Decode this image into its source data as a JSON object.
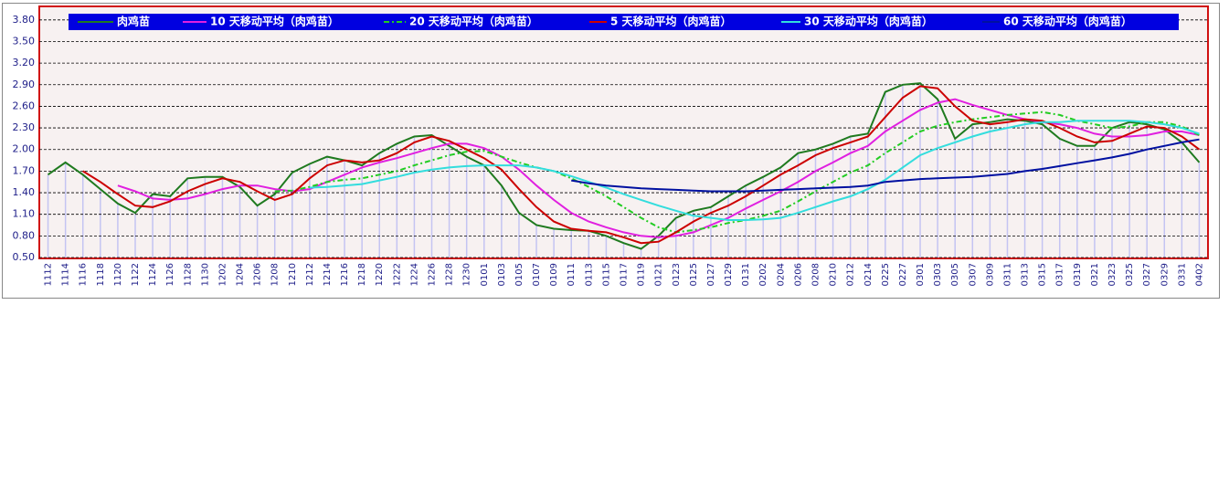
{
  "chart_data": {
    "type": "line",
    "categories": [
      "1112",
      "1114",
      "1116",
      "1118",
      "1120",
      "1122",
      "1124",
      "1126",
      "1128",
      "1130",
      "1202",
      "1204",
      "1206",
      "1208",
      "1210",
      "1212",
      "1214",
      "1216",
      "1218",
      "1220",
      "1222",
      "1224",
      "1226",
      "1228",
      "1230",
      "0101",
      "0103",
      "0105",
      "0107",
      "0109",
      "0111",
      "0113",
      "0115",
      "0117",
      "0119",
      "0121",
      "0123",
      "0125",
      "0127",
      "0129",
      "0131",
      "0202",
      "0204",
      "0206",
      "0208",
      "0210",
      "0212",
      "0214",
      "0225",
      "0227",
      "0301",
      "0303",
      "0305",
      "0307",
      "0309",
      "0311",
      "0313",
      "0315",
      "0317",
      "0319",
      "0321",
      "0323",
      "0325",
      "0327",
      "0329",
      "0331",
      "0402"
    ],
    "series": [
      {
        "name": "肉鸡苗",
        "color": "#1f7a1f",
        "bar_color": "#c4c4f2",
        "style": "solid",
        "values": [
          1.65,
          1.82,
          1.65,
          1.45,
          1.25,
          1.12,
          1.38,
          1.35,
          1.6,
          1.62,
          1.62,
          1.48,
          1.22,
          1.38,
          1.68,
          1.8,
          1.9,
          1.85,
          1.78,
          1.95,
          2.08,
          2.18,
          2.2,
          2.05,
          1.9,
          1.78,
          1.5,
          1.12,
          0.95,
          0.9,
          0.88,
          0.87,
          0.8,
          0.7,
          0.62,
          0.8,
          1.05,
          1.15,
          1.2,
          1.35,
          1.5,
          1.62,
          1.75,
          1.95,
          2.0,
          2.08,
          2.18,
          2.22,
          2.8,
          2.9,
          2.92,
          2.7,
          2.15,
          2.35,
          2.38,
          2.42,
          2.4,
          2.35,
          2.15,
          2.05,
          2.05,
          2.3,
          2.38,
          2.35,
          2.28,
          2.1,
          1.82
        ]
      },
      {
        "name": "10 天移动平均（肉鸡苗）",
        "color": "#e020e0",
        "style": "solid",
        "values": [
          null,
          null,
          null,
          null,
          1.5,
          1.42,
          1.32,
          1.3,
          1.32,
          1.38,
          1.45,
          1.5,
          1.5,
          1.45,
          1.42,
          1.45,
          1.55,
          1.65,
          1.75,
          1.82,
          1.88,
          1.95,
          2.02,
          2.08,
          2.08,
          2.02,
          1.9,
          1.72,
          1.5,
          1.3,
          1.12,
          1.0,
          0.92,
          0.85,
          0.8,
          0.78,
          0.8,
          0.85,
          0.95,
          1.05,
          1.18,
          1.3,
          1.42,
          1.55,
          1.7,
          1.82,
          1.95,
          2.05,
          2.25,
          2.4,
          2.55,
          2.65,
          2.7,
          2.62,
          2.55,
          2.48,
          2.42,
          2.38,
          2.35,
          2.3,
          2.22,
          2.18,
          2.18,
          2.2,
          2.25,
          2.25,
          2.2
        ]
      },
      {
        "name": "20 天移动平均（肉鸡苗）",
        "color": "#22cc22",
        "style": "dash-dot",
        "values": [
          null,
          null,
          null,
          null,
          null,
          null,
          null,
          null,
          null,
          null,
          null,
          null,
          null,
          1.42,
          1.43,
          1.48,
          1.55,
          1.58,
          1.6,
          1.65,
          1.7,
          1.78,
          1.85,
          1.92,
          1.97,
          1.98,
          1.9,
          1.82,
          1.75,
          1.7,
          1.6,
          1.48,
          1.35,
          1.2,
          1.05,
          0.92,
          0.85,
          0.88,
          0.92,
          0.98,
          1.02,
          1.08,
          1.15,
          1.28,
          1.42,
          1.55,
          1.68,
          1.78,
          1.95,
          2.1,
          2.25,
          2.33,
          2.38,
          2.42,
          2.45,
          2.48,
          2.5,
          2.52,
          2.48,
          2.4,
          2.35,
          2.3,
          2.32,
          2.38,
          2.38,
          2.32,
          2.2
        ]
      },
      {
        "name": "5 天移动平均（肉鸡苗）",
        "color": "#cc0000",
        "style": "solid",
        "values": [
          null,
          null,
          1.7,
          1.55,
          1.38,
          1.22,
          1.2,
          1.28,
          1.42,
          1.52,
          1.6,
          1.55,
          1.42,
          1.3,
          1.38,
          1.6,
          1.78,
          1.85,
          1.82,
          1.85,
          1.95,
          2.1,
          2.18,
          2.12,
          2.0,
          1.88,
          1.72,
          1.45,
          1.2,
          1.0,
          0.9,
          0.87,
          0.85,
          0.78,
          0.7,
          0.72,
          0.85,
          1.0,
          1.12,
          1.22,
          1.35,
          1.5,
          1.65,
          1.78,
          1.92,
          2.02,
          2.1,
          2.18,
          2.45,
          2.72,
          2.88,
          2.85,
          2.6,
          2.4,
          2.35,
          2.38,
          2.42,
          2.4,
          2.3,
          2.18,
          2.1,
          2.12,
          2.22,
          2.32,
          2.3,
          2.18,
          2.0
        ]
      },
      {
        "name": "30 天移动平均（肉鸡苗）",
        "color": "#33dddd",
        "style": "solid",
        "values": [
          null,
          null,
          null,
          null,
          null,
          null,
          null,
          null,
          null,
          null,
          null,
          null,
          null,
          null,
          null,
          1.47,
          1.48,
          1.5,
          1.52,
          1.57,
          1.62,
          1.68,
          1.72,
          1.75,
          1.77,
          1.78,
          1.78,
          1.78,
          1.75,
          1.7,
          1.63,
          1.55,
          1.47,
          1.38,
          1.3,
          1.22,
          1.15,
          1.08,
          1.05,
          1.02,
          1.02,
          1.03,
          1.05,
          1.12,
          1.2,
          1.28,
          1.35,
          1.45,
          1.58,
          1.75,
          1.92,
          2.02,
          2.1,
          2.18,
          2.25,
          2.3,
          2.35,
          2.38,
          2.38,
          2.4,
          2.4,
          2.4,
          2.4,
          2.38,
          2.35,
          2.3,
          2.22
        ]
      },
      {
        "name": "60 天移动平均（肉鸡苗）",
        "color": "#0010a0",
        "style": "solid",
        "values": [
          null,
          null,
          null,
          null,
          null,
          null,
          null,
          null,
          null,
          null,
          null,
          null,
          null,
          null,
          null,
          null,
          null,
          null,
          null,
          null,
          null,
          null,
          null,
          null,
          null,
          null,
          null,
          null,
          null,
          null,
          1.57,
          1.53,
          1.5,
          1.48,
          1.46,
          1.45,
          1.44,
          1.43,
          1.42,
          1.42,
          1.42,
          1.43,
          1.44,
          1.45,
          1.46,
          1.47,
          1.48,
          1.5,
          1.55,
          1.57,
          1.59,
          1.6,
          1.61,
          1.62,
          1.64,
          1.66,
          1.7,
          1.73,
          1.77,
          1.81,
          1.85,
          1.89,
          1.94,
          2.0,
          2.05,
          2.1,
          2.14
        ]
      }
    ],
    "ylim": [
      0.5,
      3.95
    ],
    "yticks": [
      {
        "value": 0.5,
        "label": "0.50"
      },
      {
        "value": 0.8,
        "label": "0.80"
      },
      {
        "value": 1.1,
        "label": "1.10"
      },
      {
        "value": 1.4,
        "label": "1.40"
      },
      {
        "value": 1.7,
        "label": "1.70"
      },
      {
        "value": 2.0,
        "label": "2.00"
      },
      {
        "value": 2.3,
        "label": "2.30"
      },
      {
        "value": 2.6,
        "label": "2.60"
      },
      {
        "value": 2.9,
        "label": "2.90"
      },
      {
        "value": 3.2,
        "label": "3.20"
      },
      {
        "value": 3.5,
        "label": "3.50"
      },
      {
        "value": 3.8,
        "label": "3.80"
      }
    ],
    "grid": true,
    "legend": "top",
    "legend_color": "#0000e0"
  }
}
